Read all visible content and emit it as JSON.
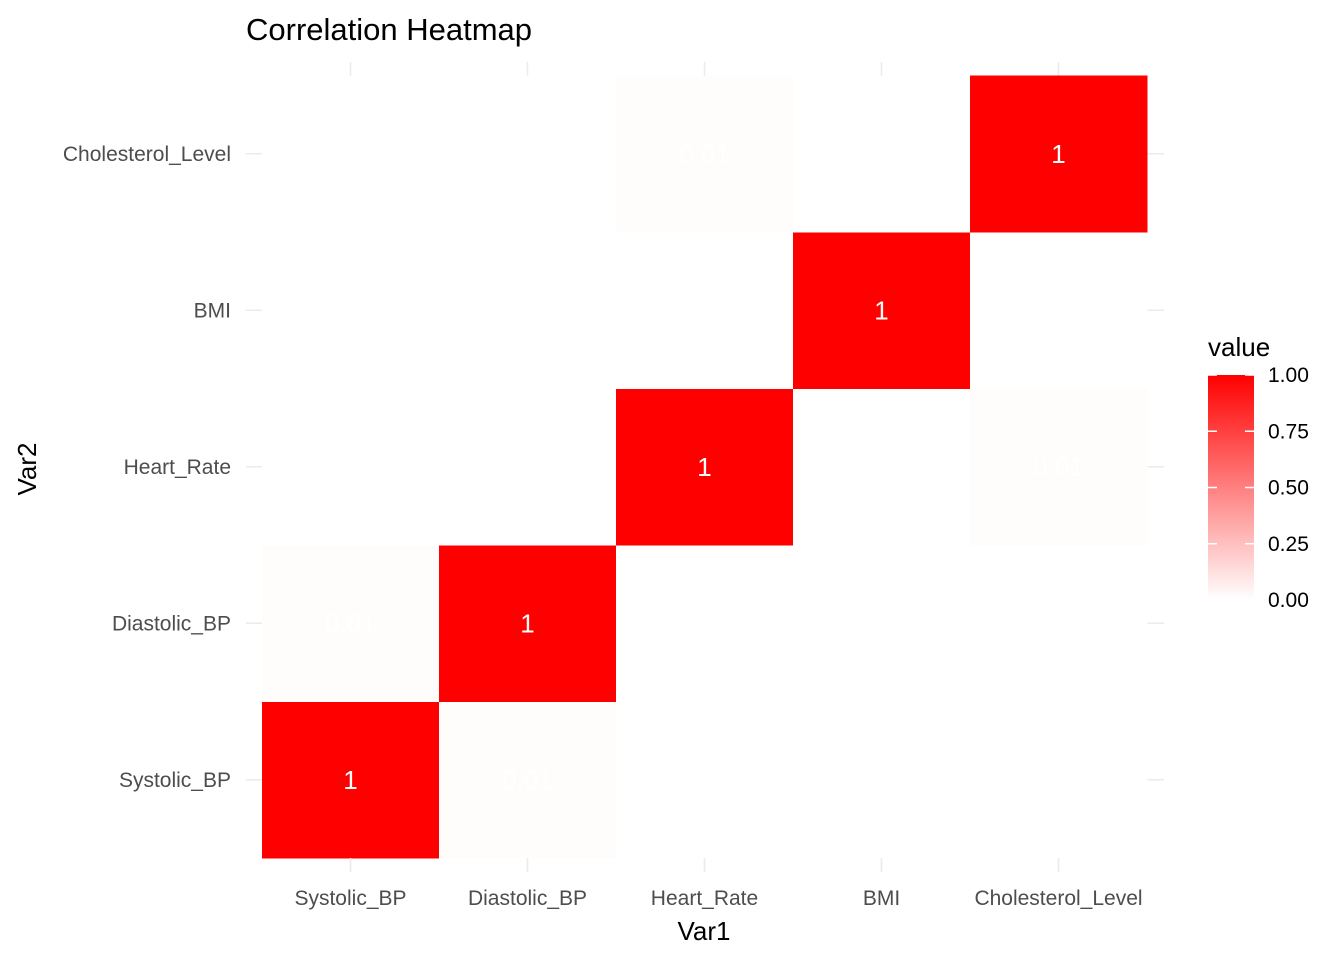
{
  "chart_data": {
    "type": "heatmap",
    "title": "Correlation Heatmap",
    "xlabel": "Var1",
    "ylabel": "Var2",
    "x": [
      "Systolic_BP",
      "Diastolic_BP",
      "Heart_Rate",
      "BMI",
      "Cholesterol_Level"
    ],
    "y": [
      "Systolic_BP",
      "Diastolic_BP",
      "Heart_Rate",
      "BMI",
      "Cholesterol_Level"
    ],
    "values": [
      [
        1,
        0.01,
        0,
        0,
        0
      ],
      [
        0.01,
        1,
        0,
        0,
        0
      ],
      [
        0,
        0,
        1,
        0,
        0.01
      ],
      [
        0,
        0,
        0,
        1,
        0
      ],
      [
        0,
        0,
        0.01,
        0,
        1
      ]
    ],
    "cell_labels": [
      [
        "1",
        "0.01",
        "",
        "",
        ""
      ],
      [
        "0.01",
        "1",
        "",
        "",
        ""
      ],
      [
        "",
        "",
        "1",
        "",
        "0.01"
      ],
      [
        "",
        "",
        "",
        "1",
        ""
      ],
      [
        "",
        "",
        "0.01",
        "",
        "1"
      ]
    ],
    "color_low": "#ffffff",
    "color_high": "#ff0000",
    "legend": {
      "title": "value",
      "ticks": [
        1.0,
        0.75,
        0.5,
        0.25,
        0.0
      ],
      "tick_labels": [
        "1.00",
        "0.75",
        "0.50",
        "0.25",
        "0.00"
      ],
      "range": [
        0,
        1
      ],
      "placement": "right"
    },
    "grid": true
  }
}
